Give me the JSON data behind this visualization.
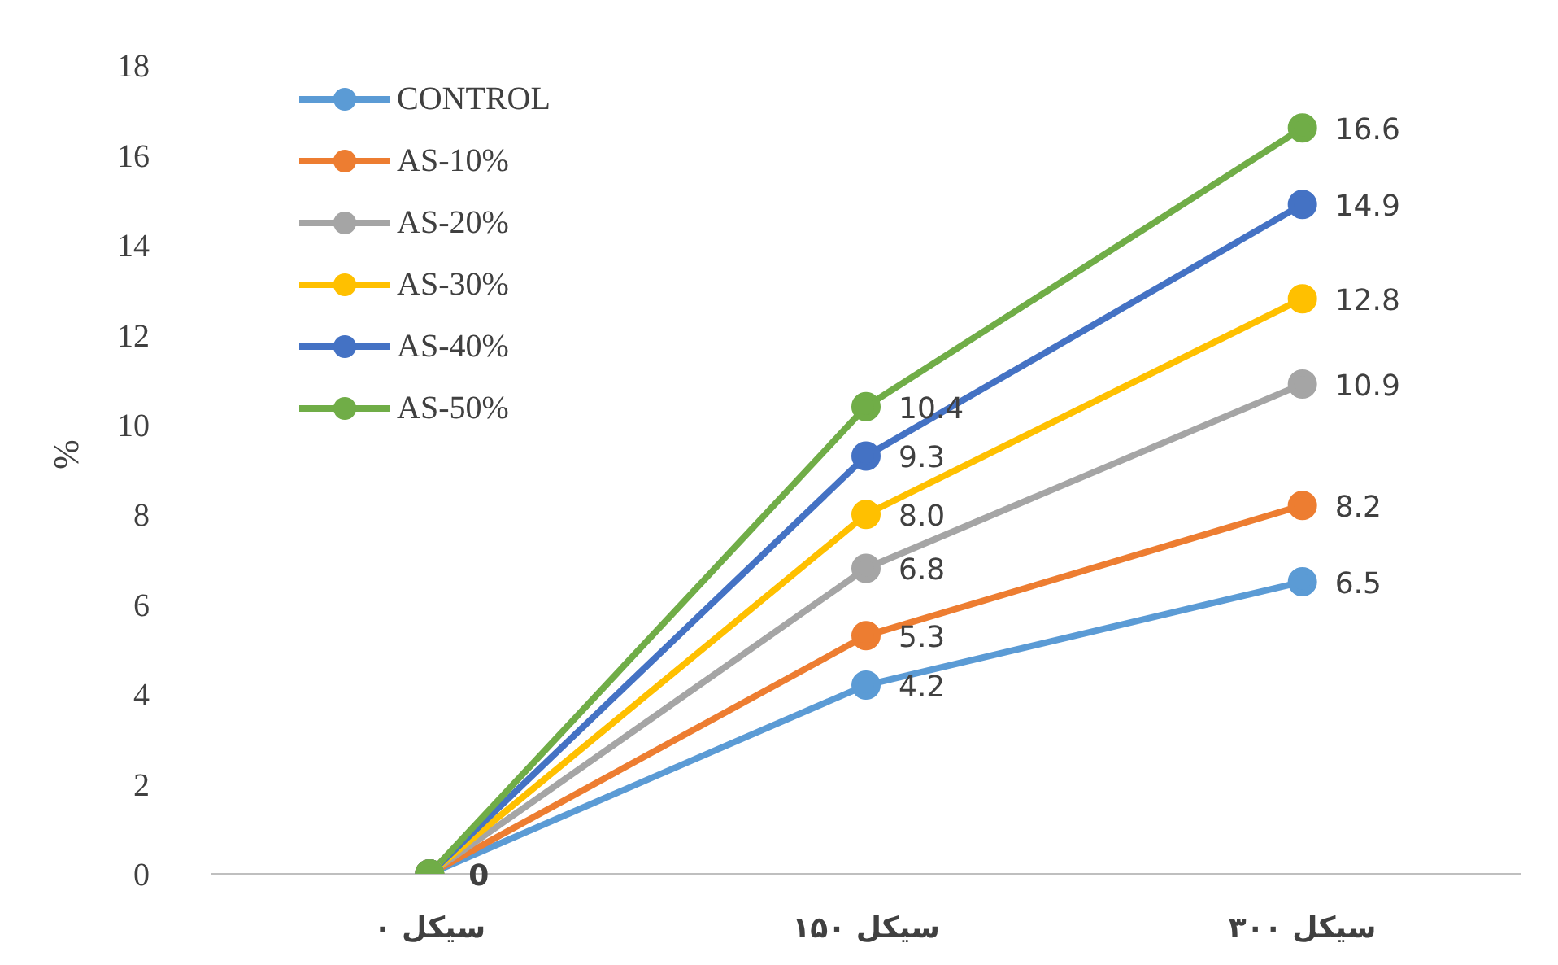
{
  "chart_data": {
    "type": "line",
    "ylabel": "%",
    "categories": [
      "۰ سیکل",
      "۱۵۰ سیکل",
      "۳۰۰ سیکل"
    ],
    "ylim": [
      0,
      18
    ],
    "yticks": [
      0,
      2,
      4,
      6,
      8,
      10,
      12,
      14,
      16,
      18
    ],
    "grid": false,
    "legend": "top left",
    "marker": "circle",
    "series": [
      {
        "name": "CONTROL",
        "color": "#5b9bd5",
        "values": [
          0,
          4.2,
          6.5
        ],
        "value_labels": [
          null,
          "4.2",
          "6.5"
        ]
      },
      {
        "name": "AS-10%",
        "color": "#ed7d31",
        "values": [
          0,
          5.3,
          8.2
        ],
        "value_labels": [
          null,
          "5.3",
          "8.2"
        ]
      },
      {
        "name": "AS-20%",
        "color": "#a5a5a5",
        "values": [
          0,
          6.8,
          10.9
        ],
        "value_labels": [
          null,
          "6.8",
          "10.9"
        ]
      },
      {
        "name": "AS-30%",
        "color": "#ffc000",
        "values": [
          0,
          8.0,
          12.8
        ],
        "value_labels": [
          null,
          "8.0",
          "12.8"
        ]
      },
      {
        "name": "AS-40%",
        "color": "#4472c4",
        "values": [
          0,
          9.3,
          14.9
        ],
        "value_labels": [
          null,
          "9.3",
          "14.9"
        ]
      },
      {
        "name": "AS-50%",
        "color": "#70ad47",
        "values": [
          0,
          10.4,
          16.6
        ],
        "value_labels": [
          "0",
          "10.4",
          "16.6"
        ]
      }
    ]
  }
}
